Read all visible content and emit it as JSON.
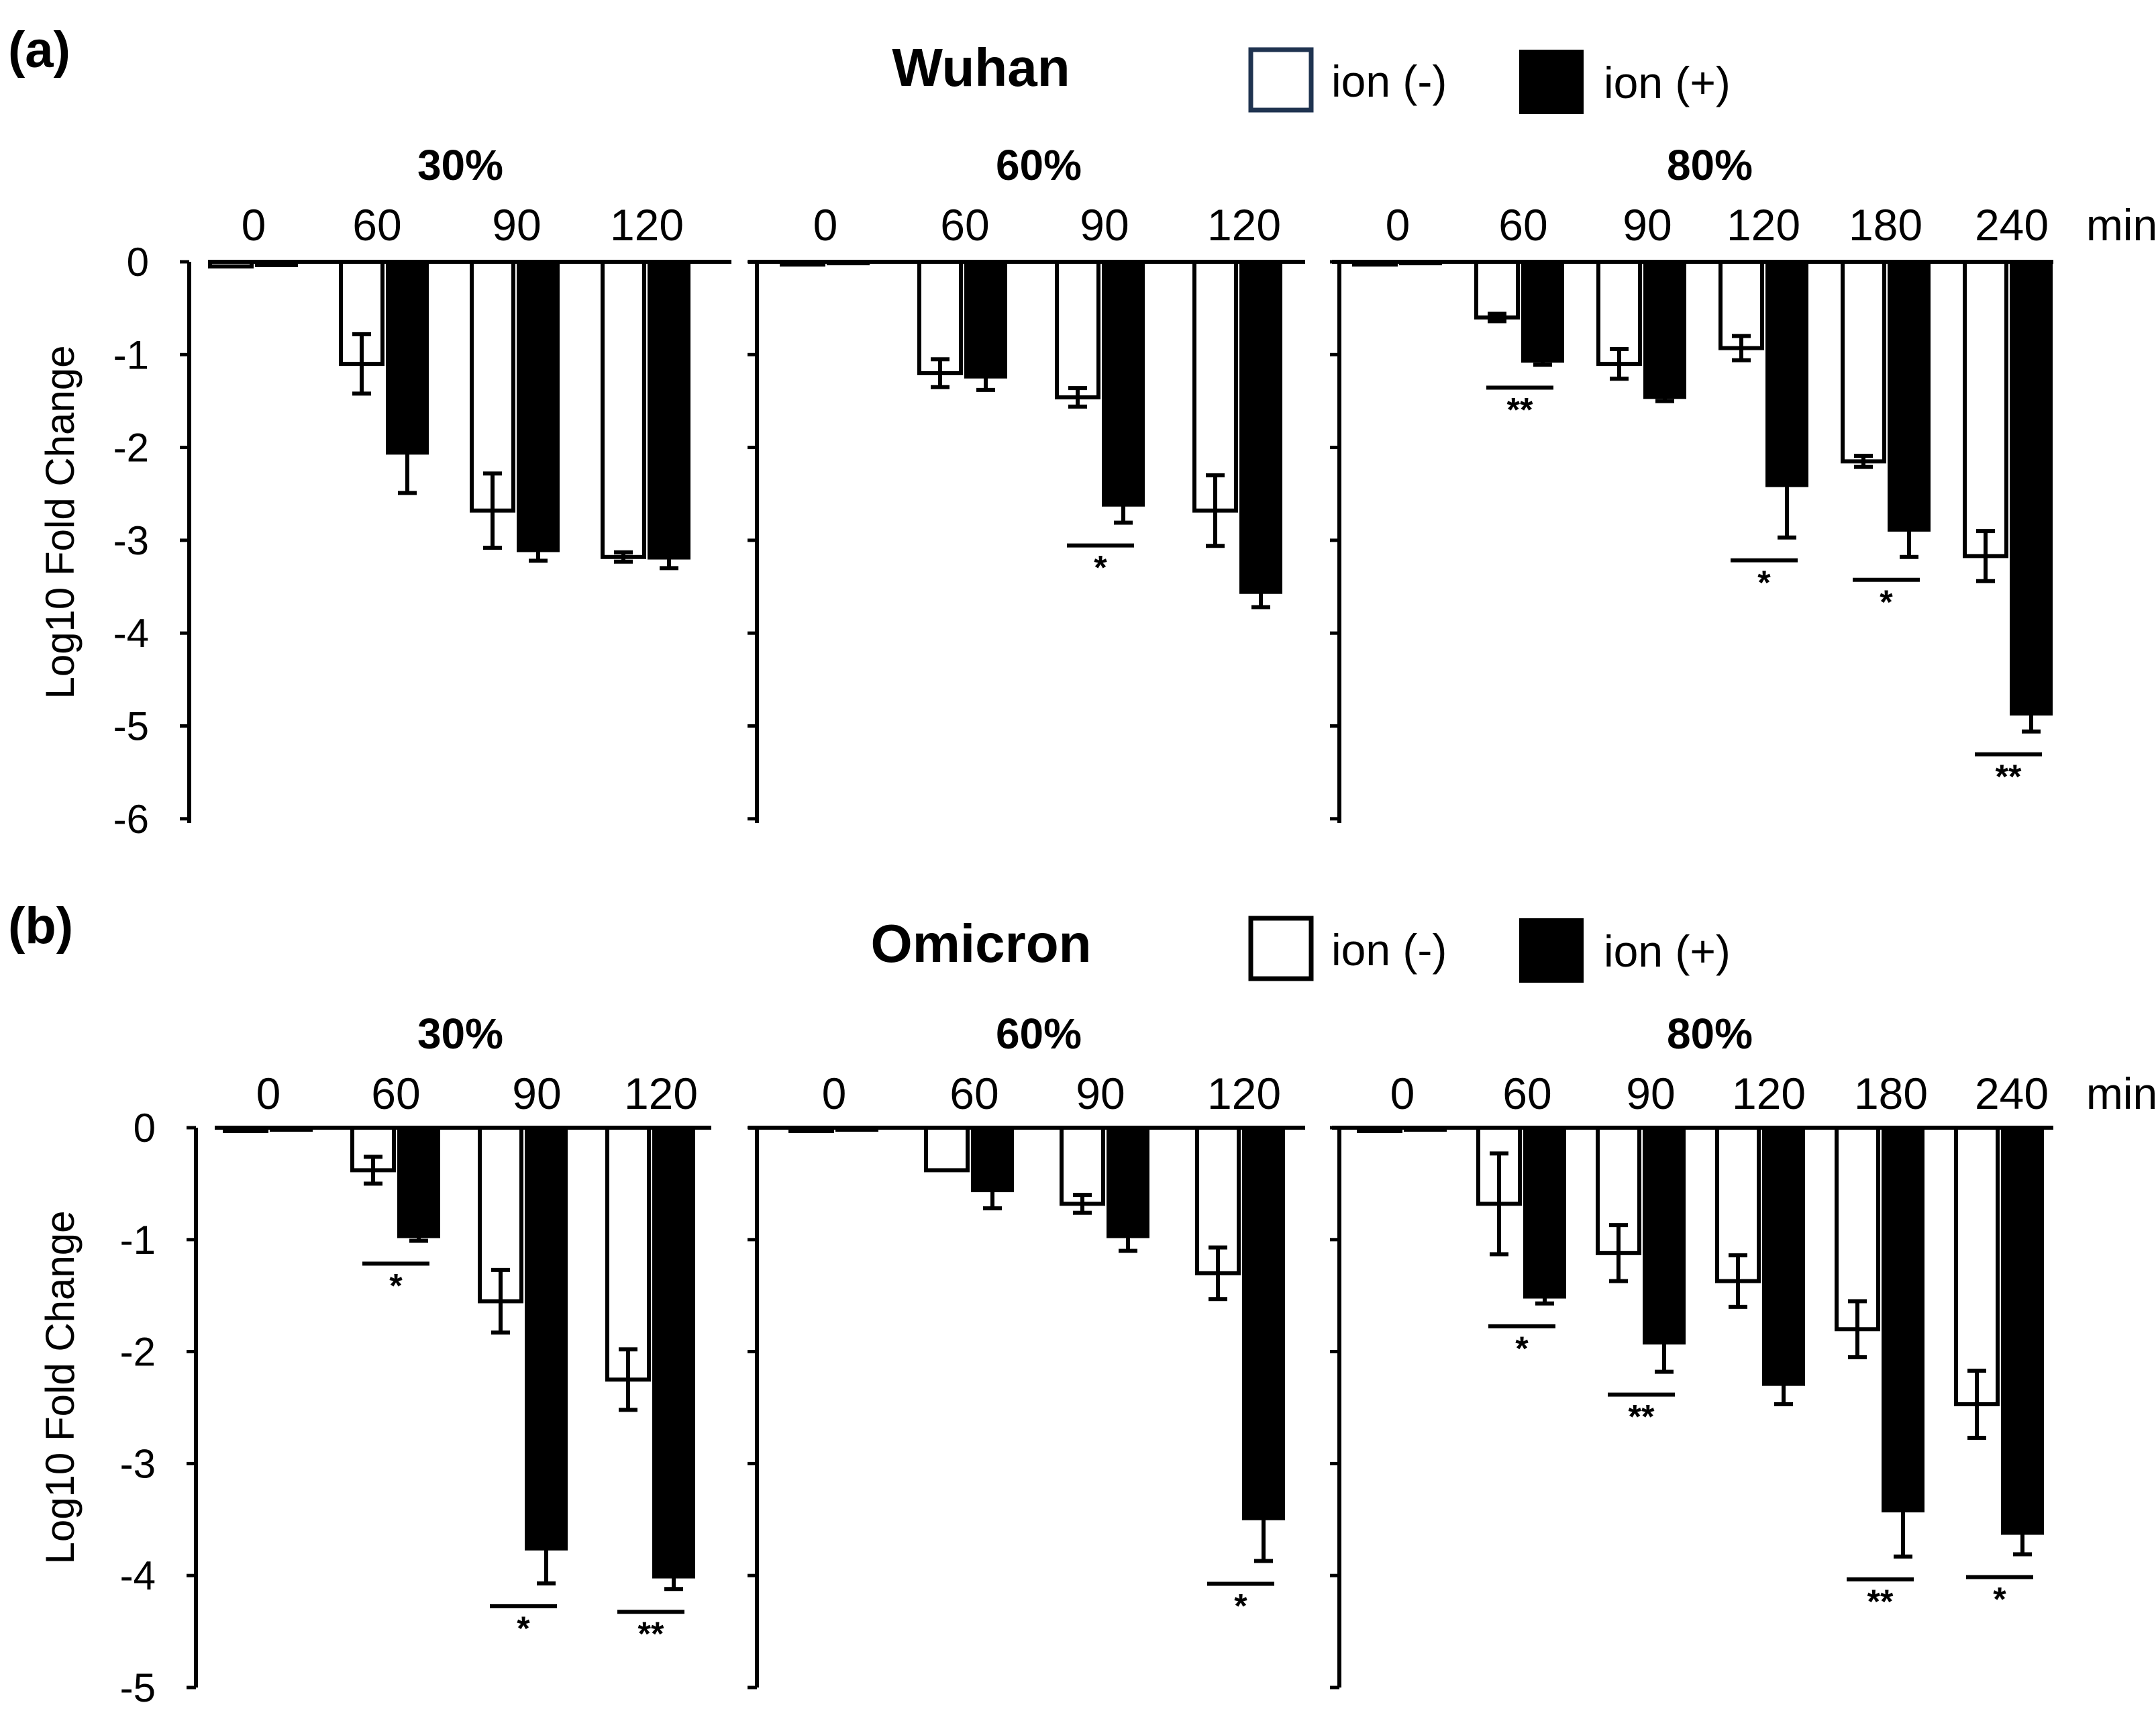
{
  "legend": {
    "neg": "ion (-)",
    "pos": "ion (+)"
  },
  "time_unit": "min",
  "colors": {
    "ion_neg_fill": "#ffffff",
    "ion_pos_fill": "#000000",
    "axis": "#000000",
    "legend_neg_border_a": "#1f3350"
  },
  "chart_data": [
    {
      "type": "bar",
      "panel": "(a)",
      "title": "Wuhan",
      "ylabel": "Log10 Fold Change",
      "ylim": [
        -6,
        0
      ],
      "yticks": [
        0,
        -1,
        -2,
        -3,
        -4,
        -5,
        -6
      ],
      "series_names": [
        "ion (-)",
        "ion (+)"
      ],
      "groups": [
        {
          "humidity": "30%",
          "categories": [
            "0",
            "60",
            "90",
            "120"
          ],
          "series": [
            {
              "name": "ion (-)",
              "values": [
                -0.05,
                -1.1,
                -2.68,
                -3.18
              ],
              "errors": [
                0,
                0.32,
                0.4,
                0.05
              ]
            },
            {
              "name": "ion (+)",
              "values": [
                -0.05,
                -2.07,
                -3.12,
                -3.2
              ],
              "errors": [
                0,
                0.42,
                0.1,
                0.1
              ]
            }
          ],
          "significance": []
        },
        {
          "humidity": "60%",
          "categories": [
            "0",
            "60",
            "90",
            "120"
          ],
          "series": [
            {
              "name": "ion (-)",
              "values": [
                -0.03,
                -1.2,
                -1.46,
                -2.68
              ],
              "errors": [
                0,
                0.15,
                0.1,
                0.38
              ]
            },
            {
              "name": "ion (+)",
              "values": [
                -0.03,
                -1.25,
                -2.63,
                -3.57
              ],
              "errors": [
                0,
                0.13,
                0.18,
                0.15
              ]
            }
          ],
          "significance": [
            {
              "index": 2,
              "label": "*"
            }
          ]
        },
        {
          "humidity": "80%",
          "categories": [
            "0",
            "60",
            "90",
            "120",
            "180",
            "240"
          ],
          "series": [
            {
              "name": "ion (-)",
              "values": [
                -0.03,
                -0.6,
                -1.1,
                -0.93,
                -2.15,
                -3.17
              ],
              "errors": [
                0,
                0.04,
                0.16,
                0.13,
                0.06,
                0.27
              ]
            },
            {
              "name": "ion (+)",
              "values": [
                -0.03,
                -1.08,
                -1.47,
                -2.42,
                -2.9,
                -4.88
              ],
              "errors": [
                0,
                0.03,
                0.03,
                0.55,
                0.28,
                0.18
              ]
            }
          ],
          "significance": [
            {
              "index": 1,
              "label": "**"
            },
            {
              "index": 3,
              "label": "*"
            },
            {
              "index": 4,
              "label": "*"
            },
            {
              "index": 5,
              "label": "**"
            }
          ]
        }
      ]
    },
    {
      "type": "bar",
      "panel": "(b)",
      "title": "Omicron",
      "ylabel": "Log10 Fold Change",
      "ylim": [
        -5,
        0
      ],
      "yticks": [
        0,
        -1,
        -2,
        -3,
        -4,
        -5
      ],
      "series_names": [
        "ion (-)",
        "ion (+)"
      ],
      "groups": [
        {
          "humidity": "30%",
          "categories": [
            "0",
            "60",
            "90",
            "120"
          ],
          "series": [
            {
              "name": "ion (-)",
              "values": [
                -0.03,
                -0.38,
                -1.55,
                -2.25
              ],
              "errors": [
                0,
                0.12,
                0.28,
                0.27
              ]
            },
            {
              "name": "ion (+)",
              "values": [
                -0.03,
                -0.98,
                -3.77,
                -4.02
              ],
              "errors": [
                0,
                0.03,
                0.3,
                0.1
              ]
            }
          ],
          "significance": [
            {
              "index": 1,
              "label": "*"
            },
            {
              "index": 2,
              "label": "*"
            },
            {
              "index": 3,
              "label": "**"
            }
          ]
        },
        {
          "humidity": "60%",
          "categories": [
            "0",
            "60",
            "90",
            "120"
          ],
          "series": [
            {
              "name": "ion (-)",
              "values": [
                -0.03,
                -0.38,
                -0.68,
                -1.3
              ],
              "errors": [
                0,
                0,
                0.08,
                0.23
              ]
            },
            {
              "name": "ion (+)",
              "values": [
                -0.03,
                -0.57,
                -0.98,
                -3.5
              ],
              "errors": [
                0,
                0.15,
                0.12,
                0.37
              ]
            }
          ],
          "significance": [
            {
              "index": 3,
              "label": "*"
            }
          ]
        },
        {
          "humidity": "80%",
          "categories": [
            "0",
            "60",
            "90",
            "120",
            "180",
            "240"
          ],
          "series": [
            {
              "name": "ion (-)",
              "values": [
                -0.03,
                -0.68,
                -1.12,
                -1.37,
                -1.8,
                -2.47
              ],
              "errors": [
                0,
                0.45,
                0.25,
                0.23,
                0.25,
                0.3
              ]
            },
            {
              "name": "ion (+)",
              "values": [
                -0.03,
                -1.52,
                -1.93,
                -2.3,
                -3.43,
                -3.63
              ],
              "errors": [
                0,
                0.05,
                0.25,
                0.17,
                0.4,
                0.18
              ]
            }
          ],
          "significance": [
            {
              "index": 1,
              "label": "*"
            },
            {
              "index": 2,
              "label": "**"
            },
            {
              "index": 4,
              "label": "**"
            },
            {
              "index": 5,
              "label": "*"
            }
          ]
        }
      ]
    }
  ]
}
